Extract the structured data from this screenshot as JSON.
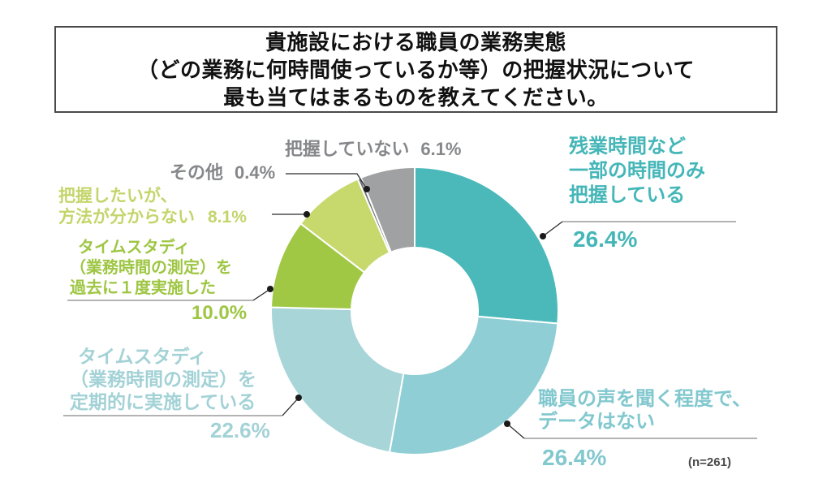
{
  "title": {
    "line1": "貴施設における職員の業務実態",
    "line2": "（どの業務に何時間使っているか等）の把握状況について",
    "line3": "最も当てはまるものを教えてください。"
  },
  "chart_data": {
    "type": "pie",
    "subtype": "donut",
    "title": "貴施設における職員の業務実態（どの業務に何時間使っているか等）の把握状況について最も当てはまるものを教えてください。",
    "start_angle": "12-oclock-clockwise",
    "sample_size_label": "(n=261)",
    "segments": [
      {
        "label": "残業時間など一部の時間のみ把握している",
        "value": 26.4,
        "color": "#4bb9ba"
      },
      {
        "label": "職員の声を聞く程度で、データはない",
        "value": 26.4,
        "color": "#8fced4"
      },
      {
        "label": "タイムスタディ（業務時間の測定）を定期的に実施している",
        "value": 22.6,
        "color": "#a8d5d8"
      },
      {
        "label": "タイムスタディ（業務時間の測定）を過去に１度実施した",
        "value": 10.0,
        "color": "#a0c845"
      },
      {
        "label": "把握したいが、方法が分からない",
        "value": 8.1,
        "color": "#c7d96d"
      },
      {
        "label": "その他",
        "value": 0.4,
        "color": "#717477"
      },
      {
        "label": "把握していない",
        "value": 6.1,
        "color": "#a0a1a3"
      }
    ]
  },
  "callouts": {
    "zangyou": {
      "line1": "残業時間など",
      "line2": "一部の時間のみ",
      "line3": "把握している",
      "value": "26.4%",
      "color": "#45b6b8"
    },
    "shokuin": {
      "line1": "職員の声を聞く程度で、",
      "line2": "データはない",
      "value": "26.4%",
      "color": "#82c8cf"
    },
    "teiki": {
      "line1": "タイムスタディ",
      "line2": "（業務時間の測定）を",
      "line3": "定期的に実施している",
      "value": "22.6%",
      "color": "#a3d2d6"
    },
    "kako": {
      "line1": "タイムスタディ",
      "line2": "（業務時間の測定）を",
      "line3": "過去に１度実施した",
      "value": "10.0%",
      "color": "#9ec643"
    },
    "hoho": {
      "line1": "把握したいが、",
      "line2": "方法が分からない",
      "value": "8.1%",
      "color": "#c3d56a"
    },
    "sonota": {
      "label": "その他",
      "value": "0.4%",
      "color": "#85878a"
    },
    "haaku": {
      "label": "把握していない",
      "value": "6.1%",
      "color": "#85878a"
    }
  },
  "footnote": {
    "text": "(n=261)",
    "color": "#4a4a4a"
  }
}
